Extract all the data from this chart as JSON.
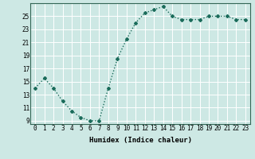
{
  "x": [
    0,
    1,
    2,
    3,
    4,
    5,
    6,
    7,
    8,
    9,
    10,
    11,
    12,
    13,
    14,
    15,
    16,
    17,
    18,
    19,
    20,
    21,
    22,
    23
  ],
  "y": [
    14.0,
    15.5,
    14.0,
    12.0,
    10.5,
    9.5,
    9.0,
    9.0,
    14.0,
    18.5,
    21.5,
    24.0,
    25.5,
    26.0,
    26.5,
    25.0,
    24.5,
    24.5,
    24.5,
    25.0,
    25.0,
    25.0,
    24.5,
    24.5
  ],
  "line_color": "#1a6b5a",
  "marker": "D",
  "marker_size": 2.0,
  "bg_color": "#cde8e4",
  "grid_color": "#ffffff",
  "xlabel": "Humidex (Indice chaleur)",
  "ylim": [
    8.5,
    27.0
  ],
  "xlim": [
    -0.5,
    23.5
  ],
  "yticks": [
    9,
    11,
    13,
    15,
    17,
    19,
    21,
    23,
    25
  ],
  "xticks": [
    0,
    1,
    2,
    3,
    4,
    5,
    6,
    7,
    8,
    9,
    10,
    11,
    12,
    13,
    14,
    15,
    16,
    17,
    18,
    19,
    20,
    21,
    22,
    23
  ],
  "tick_fontsize": 5.5,
  "xlabel_fontsize": 6.5,
  "line_width": 1.0
}
